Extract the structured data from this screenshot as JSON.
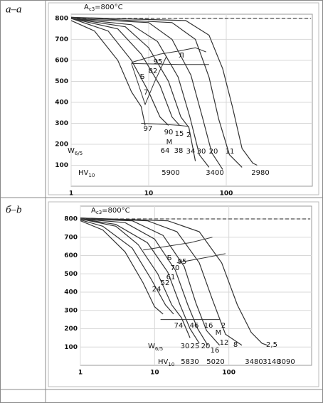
{
  "table": {
    "rows": [
      {
        "label": "а–а",
        "chart": {
          "type": "line",
          "xlog": true,
          "grid": true,
          "xlim": [
            1,
            1000
          ],
          "ylim": [
            0,
            820
          ],
          "xticks": [
            1,
            10,
            100
          ],
          "yticks": [
            100,
            200,
            300,
            400,
            500,
            600,
            700,
            800
          ],
          "ac3": {
            "value": 800,
            "prefix": "A",
            "sub": "c3",
            "suffix": "=800°C"
          },
          "w_label": {
            "text": "W",
            "sub": "6/5"
          },
          "hv_label": {
            "text": "HV",
            "sub": "10"
          },
          "labels": [
            "Л",
            "95",
            "82",
            "Б",
            "7",
            "97",
            "90",
            "15",
            "2",
            "М",
            "64",
            "38",
            "34",
            "30",
            "20",
            "11",
            "5900",
            "3400",
            "2980"
          ],
          "series": [
            {
              "color": "#333333",
              "x": [
                1,
                2,
                4,
                6,
                8,
                9
              ],
              "values": [
                790,
                740,
                600,
                450,
                380,
                290
              ]
            },
            {
              "color": "#333333",
              "x": [
                1,
                3,
                6,
                10,
                14,
                18
              ],
              "values": [
                800,
                740,
                600,
                450,
                330,
                290
              ]
            },
            {
              "color": "#333333",
              "x": [
                1,
                4,
                8,
                14,
                20,
                25
              ],
              "values": [
                800,
                750,
                630,
                480,
                330,
                290
              ]
            },
            {
              "color": "#333333",
              "x": [
                1,
                5,
                10,
                18,
                26,
                33,
                40
              ],
              "values": [
                800,
                760,
                660,
                500,
                330,
                280,
                120
              ]
            },
            {
              "color": "#333333",
              "x": [
                1,
                6,
                13,
                24,
                34,
                45,
                60
              ],
              "values": [
                800,
                770,
                690,
                520,
                330,
                150,
                90
              ]
            },
            {
              "color": "#333333",
              "x": [
                1,
                10,
                20,
                35,
                50,
                65,
                90
              ],
              "values": [
                800,
                780,
                700,
                530,
                320,
                160,
                80
              ]
            },
            {
              "color": "#333333",
              "x": [
                1,
                20,
                40,
                60,
                80,
                110,
                160
              ],
              "values": [
                805,
                780,
                700,
                520,
                320,
                150,
                90
              ]
            },
            {
              "color": "#333333",
              "x": [
                1,
                30,
                60,
                90,
                120,
                160,
                220,
                250
              ],
              "values": [
                805,
                790,
                720,
                560,
                380,
                180,
                110,
                100
              ]
            }
          ],
          "boundaries": [
            {
              "color": "#333333",
              "x": [
                6,
                14,
                25,
                40,
                55
              ],
              "values": [
                590,
                630,
                645,
                660,
                640
              ]
            },
            {
              "color": "#333333",
              "x": [
                6,
                25,
                60
              ],
              "values": [
                585,
                580,
                580
              ]
            },
            {
              "color": "#333333",
              "x": [
                6,
                9,
                12,
                17
              ],
              "values": [
                585,
                390,
                500,
                620
              ]
            },
            {
              "color": "#333333",
              "x": [
                8,
                15,
                25,
                33
              ],
              "values": [
                300,
                295,
                290,
                285
              ]
            }
          ]
        }
      },
      {
        "label": "б–b",
        "chart": {
          "type": "line",
          "xlog": true,
          "grid": true,
          "xlim": [
            1,
            1000
          ],
          "ylim": [
            0,
            870
          ],
          "xticks": [
            1,
            10,
            100
          ],
          "yticks": [
            100,
            200,
            300,
            400,
            500,
            600,
            700,
            800
          ],
          "ac3": {
            "value": 800,
            "prefix": "A",
            "sub": "c3",
            "suffix": "=800°C"
          },
          "w_label": {
            "text": "W",
            "sub": "6/5"
          },
          "hv_label": {
            "text": "HV",
            "sub": "10"
          },
          "labels": [
            "Б",
            "95",
            "70",
            "61",
            "52",
            "24",
            "74",
            "46",
            "16",
            "2",
            "М",
            "12",
            "8",
            "2,5",
            "30",
            "25",
            "20",
            "16",
            "5830",
            "5020",
            "3480",
            "3140",
            "3090"
          ],
          "series": [
            {
              "color": "#333333",
              "x": [
                1,
                2,
                4,
                7,
                10,
                13
              ],
              "values": [
                790,
                740,
                620,
                450,
                320,
                280
              ]
            },
            {
              "color": "#333333",
              "x": [
                1,
                2,
                5,
                9,
                14,
                18
              ],
              "values": [
                795,
                760,
                640,
                470,
                330,
                280
              ]
            },
            {
              "color": "#333333",
              "x": [
                1,
                3,
                6,
                11,
                17,
                23,
                30
              ],
              "values": [
                800,
                760,
                660,
                500,
                330,
                260,
                150
              ]
            },
            {
              "color": "#333333",
              "x": [
                1,
                3,
                8,
                15,
                22,
                30,
                40
              ],
              "values": [
                800,
                770,
                670,
                510,
                330,
                200,
                120
              ]
            },
            {
              "color": "#333333",
              "x": [
                1,
                4,
                10,
                19,
                28,
                38,
                52
              ],
              "values": [
                800,
                780,
                690,
                520,
                330,
                200,
                110
              ]
            },
            {
              "color": "#333333",
              "x": [
                1,
                5,
                13,
                25,
                36,
                50,
                75
              ],
              "values": [
                800,
                790,
                710,
                540,
                340,
                190,
                110
              ]
            },
            {
              "color": "#333333",
              "x": [
                1,
                8,
                20,
                40,
                60,
                90,
                150
              ],
              "values": [
                805,
                790,
                730,
                560,
                360,
                170,
                110
              ]
            },
            {
              "color": "#333333",
              "x": [
                1,
                15,
                40,
                80,
                130,
                200,
                280,
                330
              ],
              "values": [
                805,
                790,
                730,
                560,
                330,
                180,
                120,
                110
              ]
            }
          ],
          "boundaries": [
            {
              "color": "#333333",
              "x": [
                7,
                30,
                60
              ],
              "values": [
                630,
                670,
                700
              ]
            },
            {
              "color": "#333333",
              "x": [
                20,
                50,
                90
              ],
              "values": [
                560,
                590,
                610
              ]
            },
            {
              "color": "#333333",
              "x": [
                12,
                17,
                25,
                40,
                75
              ],
              "values": [
                250,
                250,
                250,
                250,
                250
              ]
            }
          ]
        }
      }
    ]
  }
}
